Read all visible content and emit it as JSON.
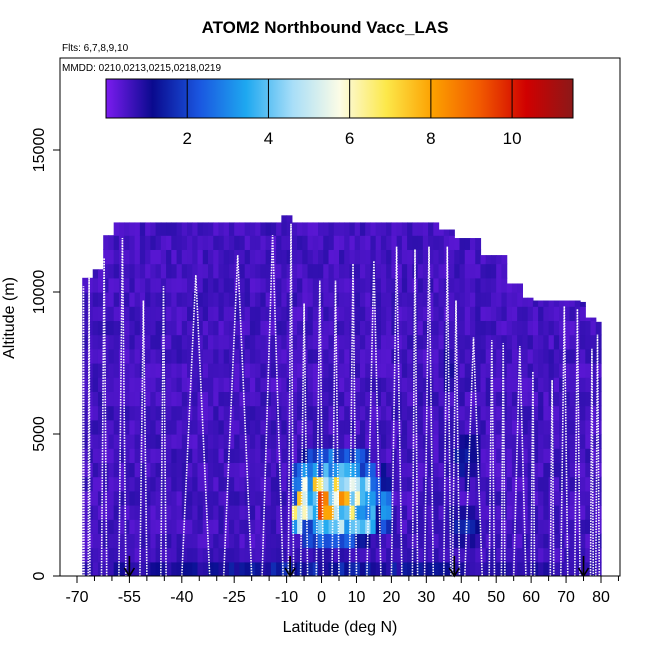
{
  "chart_data": {
    "type": "heatmap",
    "title": "ATOM2 Northbound Vacc_LAS",
    "flights_label": "Flts: 6,7,8,9,10",
    "dates_label": "MMDD: 0210,0213,0215,0218,0219",
    "xlabel": "Latitude (deg N)",
    "ylabel": "Altitude (m)",
    "xlim": [
      -70,
      85
    ],
    "ylim": [
      0,
      17500
    ],
    "x_ticks": [
      -70,
      -55,
      -40,
      -25,
      -10,
      0,
      10,
      20,
      30,
      40,
      50,
      60,
      70,
      80
    ],
    "x_minor_ticks": [
      -65,
      -60,
      -50,
      -45,
      -35,
      -30,
      -20,
      -15,
      -5,
      5,
      15,
      25,
      35,
      45,
      55,
      65,
      75,
      85
    ],
    "y_ticks": [
      0,
      5000,
      10000,
      15000
    ],
    "colorbar": {
      "range": [
        0,
        11.5
      ],
      "ticks": [
        2,
        4,
        6,
        8,
        10
      ],
      "colors": [
        "#7b1cf0",
        "#0a0a8e",
        "#1a56e0",
        "#1ea8f0",
        "#a8def8",
        "#fcfce6",
        "#fce84a",
        "#fca000",
        "#f25a00",
        "#d00000",
        "#8c1818"
      ]
    },
    "envelope": [
      [
        -68.5,
        10500
      ],
      [
        -67,
        10500
      ],
      [
        -65,
        10800
      ],
      [
        -63,
        11600
      ],
      [
        -62,
        12000
      ],
      [
        -60,
        12450
      ],
      [
        -44,
        12450
      ],
      [
        -20,
        12450
      ],
      [
        -12,
        12400
      ],
      [
        -11,
        12700
      ],
      [
        -9,
        12450
      ],
      [
        30,
        12450
      ],
      [
        34,
        12200
      ],
      [
        38,
        11900
      ],
      [
        46,
        11300
      ],
      [
        53,
        10300
      ],
      [
        58,
        9800
      ],
      [
        60,
        9700
      ],
      [
        74,
        9650
      ],
      [
        76,
        9100
      ],
      [
        78,
        8950
      ],
      [
        80,
        8900
      ]
    ],
    "profiles": [
      {
        "x0": -68.3,
        "x1": -68.0,
        "top": 10200
      },
      {
        "x0": -66.8,
        "x1": -66.3,
        "top": 10500
      },
      {
        "x0": -63.0,
        "x1": -61.5,
        "top": 11200
      },
      {
        "x0": -58.0,
        "x1": -56.0,
        "top": 11900
      },
      {
        "x0": -52.0,
        "x1": -50.0,
        "top": 9700
      },
      {
        "x0": -46.0,
        "x1": -44.5,
        "top": 10200
      },
      {
        "x0": -40.0,
        "x1": -32.0,
        "top": 10600
      },
      {
        "x0": -28.0,
        "x1": -20.0,
        "top": 11300
      },
      {
        "x0": -17.0,
        "x1": -11.0,
        "top": 12000
      },
      {
        "x0": -9.5,
        "x1": -8.0,
        "top": 12400
      },
      {
        "x0": -6.0,
        "x1": -4.0,
        "top": 9600
      },
      {
        "x0": -1.5,
        "x1": 0.5,
        "top": 10400
      },
      {
        "x0": 3.0,
        "x1": 5.0,
        "top": 10400
      },
      {
        "x0": 8.0,
        "x1": 10.0,
        "top": 11000
      },
      {
        "x0": 13.0,
        "x1": 17.0,
        "top": 11100
      },
      {
        "x0": 20.0,
        "x1": 23.0,
        "top": 11600
      },
      {
        "x0": 26.0,
        "x1": 27.5,
        "top": 11500
      },
      {
        "x0": 29.5,
        "x1": 32.0,
        "top": 11600
      },
      {
        "x0": 35.0,
        "x1": 37.0,
        "top": 11600
      },
      {
        "x0": 37.5,
        "x1": 39.5,
        "top": 9700
      },
      {
        "x0": 41.0,
        "x1": 46.0,
        "top": 8400
      },
      {
        "x0": 48.0,
        "x1": 49.5,
        "top": 8300
      },
      {
        "x0": 51.5,
        "x1": 52.5,
        "top": 8200
      },
      {
        "x0": 55.0,
        "x1": 58.5,
        "top": 8100
      },
      {
        "x0": 60.0,
        "x1": 61.0,
        "top": 7200
      },
      {
        "x0": 65.5,
        "x1": 66.5,
        "top": 6900
      },
      {
        "x0": 68.5,
        "x1": 70.5,
        "top": 9500
      },
      {
        "x0": 72.5,
        "x1": 74.0,
        "top": 9400
      },
      {
        "x0": 77.0,
        "x1": 77.8,
        "top": 8000
      },
      {
        "x0": 78.5,
        "x1": 79.5,
        "top": 8500
      }
    ],
    "hotspots": [
      {
        "lat": [
          -9,
          20
        ],
        "alt": [
          1500,
          3800
        ],
        "peak": 10.5,
        "center": [
          1,
          2500
        ]
      },
      {
        "lat": [
          -6,
          14
        ],
        "alt": [
          800,
          4500
        ],
        "peak": 6.0,
        "center": [
          4,
          2800
        ]
      },
      {
        "lat": [
          36,
          46
        ],
        "alt": [
          3000,
          5200
        ],
        "peak": 2.0,
        "center": [
          41,
          4200
        ]
      },
      {
        "lat": [
          36,
          46
        ],
        "alt": [
          1000,
          2500
        ],
        "peak": 2.2,
        "center": [
          41,
          1800
        ]
      },
      {
        "lat": [
          -68,
          80
        ],
        "alt": [
          0,
          900
        ],
        "peak": 1.9,
        "center": [
          0,
          300
        ]
      },
      {
        "lat": [
          34,
          38
        ],
        "alt": [
          6500,
          8500
        ],
        "peak": 1.8,
        "center": [
          36,
          7500
        ]
      }
    ],
    "arrows": [
      -55,
      -9,
      38,
      75
    ],
    "grid": false
  }
}
